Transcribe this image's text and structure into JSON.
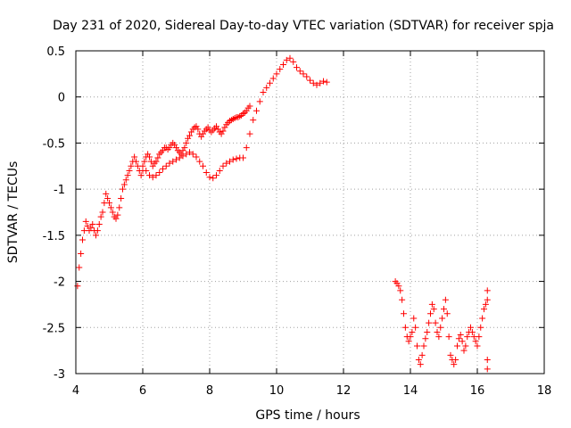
{
  "chart_data": {
    "type": "scatter",
    "title": "Day 231 of 2020, Sidereal Day-to-day VTEC variation (SDTVAR) for receiver spja",
    "xlabel": "GPS time / hours",
    "ylabel": "SDTVAR / TECUs",
    "xlim": [
      4,
      18
    ],
    "ylim": [
      -3,
      0.5
    ],
    "x_ticks": [
      4,
      6,
      8,
      10,
      12,
      14,
      16,
      18
    ],
    "x_tick_labels": [
      "4",
      "6",
      "8",
      "10",
      "12",
      "14",
      "16",
      "18"
    ],
    "y_ticks": [
      0.5,
      0,
      -0.5,
      -1,
      -1.5,
      -2,
      -2.5,
      -3
    ],
    "y_tick_labels": [
      "0.5",
      "0",
      "-0.5",
      "-1",
      "-1.5",
      "-2",
      "-2.5",
      "-3"
    ],
    "grid": true,
    "marker": "+",
    "color": "#ff0000",
    "series": [
      {
        "name": "SDTVAR",
        "x": [
          4.05,
          4.1,
          4.15,
          4.2,
          4.25,
          4.3,
          4.35,
          4.4,
          4.45,
          4.5,
          4.55,
          4.6,
          4.65,
          4.7,
          4.75,
          4.8,
          4.85,
          4.9,
          4.95,
          5.0,
          5.05,
          5.1,
          5.15,
          5.2,
          5.25,
          5.3,
          5.35,
          5.4,
          5.45,
          5.5,
          5.55,
          5.6,
          5.65,
          5.7,
          5.75,
          5.8,
          5.85,
          5.9,
          5.95,
          6.0,
          6.05,
          6.1,
          6.15,
          6.2,
          6.25,
          6.3,
          6.35,
          6.4,
          6.45,
          6.5,
          6.55,
          6.6,
          6.65,
          6.7,
          6.75,
          6.8,
          6.85,
          6.9,
          6.95,
          7.0,
          7.05,
          7.1,
          7.15,
          7.2,
          7.25,
          7.3,
          7.35,
          7.4,
          7.45,
          7.5,
          7.55,
          7.6,
          7.65,
          7.7,
          7.75,
          7.8,
          7.85,
          7.9,
          7.95,
          8.0,
          8.05,
          8.1,
          8.15,
          8.2,
          8.25,
          8.3,
          8.35,
          8.4,
          8.45,
          8.5,
          8.55,
          8.6,
          8.65,
          8.7,
          8.75,
          8.8,
          8.85,
          8.9,
          8.95,
          9.0,
          9.05,
          9.1,
          9.15,
          9.2,
          6.0,
          6.1,
          6.2,
          6.3,
          6.4,
          6.5,
          6.6,
          6.7,
          6.8,
          6.9,
          7.0,
          7.1,
          7.2,
          7.3,
          7.4,
          7.5,
          7.6,
          7.7,
          7.8,
          7.9,
          8.0,
          8.1,
          8.2,
          8.3,
          8.4,
          8.5,
          8.6,
          8.7,
          8.8,
          8.9,
          9.0,
          9.1,
          9.2,
          9.3,
          9.4,
          9.5,
          9.6,
          9.7,
          9.8,
          9.9,
          10.0,
          10.1,
          10.2,
          10.3,
          10.4,
          10.5,
          10.6,
          10.7,
          10.8,
          10.9,
          11.0,
          11.1,
          11.2,
          11.3,
          11.4,
          11.5,
          13.55,
          13.6,
          13.65,
          13.7,
          13.75,
          13.8,
          13.85,
          13.9,
          13.95,
          14.0,
          14.05,
          14.1,
          14.15,
          14.2,
          14.25,
          14.3,
          14.35,
          14.4,
          14.45,
          14.5,
          14.55,
          14.6,
          14.65,
          14.7,
          14.75,
          14.8,
          14.85,
          14.9,
          14.95,
          15.0,
          15.05,
          15.1,
          15.15,
          15.2,
          15.25,
          15.3,
          15.35,
          15.4,
          15.45,
          15.5,
          15.55,
          15.6,
          15.65,
          15.7,
          15.75,
          15.8,
          15.85,
          15.9,
          15.95,
          16.0,
          16.05,
          16.1,
          16.15,
          16.2,
          16.25,
          16.3,
          16.3,
          16.3,
          16.3
        ],
        "y": [
          -2.05,
          -1.85,
          -1.7,
          -1.55,
          -1.45,
          -1.35,
          -1.4,
          -1.45,
          -1.42,
          -1.38,
          -1.45,
          -1.5,
          -1.45,
          -1.38,
          -1.3,
          -1.25,
          -1.15,
          -1.05,
          -1.1,
          -1.15,
          -1.2,
          -1.25,
          -1.3,
          -1.32,
          -1.28,
          -1.2,
          -1.1,
          -1.0,
          -0.95,
          -0.9,
          -0.85,
          -0.8,
          -0.75,
          -0.7,
          -0.65,
          -0.7,
          -0.75,
          -0.8,
          -0.85,
          -0.8,
          -0.7,
          -0.65,
          -0.62,
          -0.65,
          -0.7,
          -0.75,
          -0.72,
          -0.7,
          -0.66,
          -0.62,
          -0.6,
          -0.58,
          -0.55,
          -0.55,
          -0.57,
          -0.55,
          -0.52,
          -0.5,
          -0.52,
          -0.55,
          -0.58,
          -0.6,
          -0.62,
          -0.58,
          -0.55,
          -0.5,
          -0.45,
          -0.42,
          -0.38,
          -0.35,
          -0.33,
          -0.32,
          -0.35,
          -0.4,
          -0.43,
          -0.4,
          -0.37,
          -0.35,
          -0.33,
          -0.36,
          -0.38,
          -0.36,
          -0.34,
          -0.32,
          -0.35,
          -0.38,
          -0.4,
          -0.37,
          -0.33,
          -0.3,
          -0.28,
          -0.26,
          -0.25,
          -0.24,
          -0.23,
          -0.22,
          -0.22,
          -0.21,
          -0.2,
          -0.18,
          -0.17,
          -0.15,
          -0.12,
          -0.1,
          -0.75,
          -0.8,
          -0.85,
          -0.87,
          -0.85,
          -0.82,
          -0.78,
          -0.75,
          -0.72,
          -0.7,
          -0.68,
          -0.66,
          -0.64,
          -0.62,
          -0.6,
          -0.62,
          -0.65,
          -0.7,
          -0.75,
          -0.82,
          -0.87,
          -0.88,
          -0.85,
          -0.8,
          -0.75,
          -0.72,
          -0.7,
          -0.68,
          -0.67,
          -0.66,
          -0.66,
          -0.55,
          -0.4,
          -0.25,
          -0.15,
          -0.05,
          0.05,
          0.1,
          0.15,
          0.2,
          0.25,
          0.3,
          0.35,
          0.4,
          0.42,
          0.38,
          0.32,
          0.28,
          0.25,
          0.22,
          0.18,
          0.15,
          0.13,
          0.15,
          0.17,
          0.16,
          -2.0,
          -2.02,
          -2.05,
          -2.1,
          -2.2,
          -2.35,
          -2.5,
          -2.6,
          -2.65,
          -2.6,
          -2.55,
          -2.4,
          -2.5,
          -2.7,
          -2.85,
          -2.9,
          -2.8,
          -2.7,
          -2.62,
          -2.55,
          -2.45,
          -2.35,
          -2.25,
          -2.3,
          -2.45,
          -2.55,
          -2.6,
          -2.5,
          -2.4,
          -2.3,
          -2.2,
          -2.35,
          -2.6,
          -2.8,
          -2.85,
          -2.9,
          -2.85,
          -2.7,
          -2.62,
          -2.58,
          -2.65,
          -2.75,
          -2.7,
          -2.6,
          -2.55,
          -2.5,
          -2.55,
          -2.6,
          -2.65,
          -2.7,
          -2.6,
          -2.5,
          -2.4,
          -2.3,
          -2.25,
          -2.2,
          -2.1,
          -2.85,
          -2.95
        ]
      }
    ]
  }
}
